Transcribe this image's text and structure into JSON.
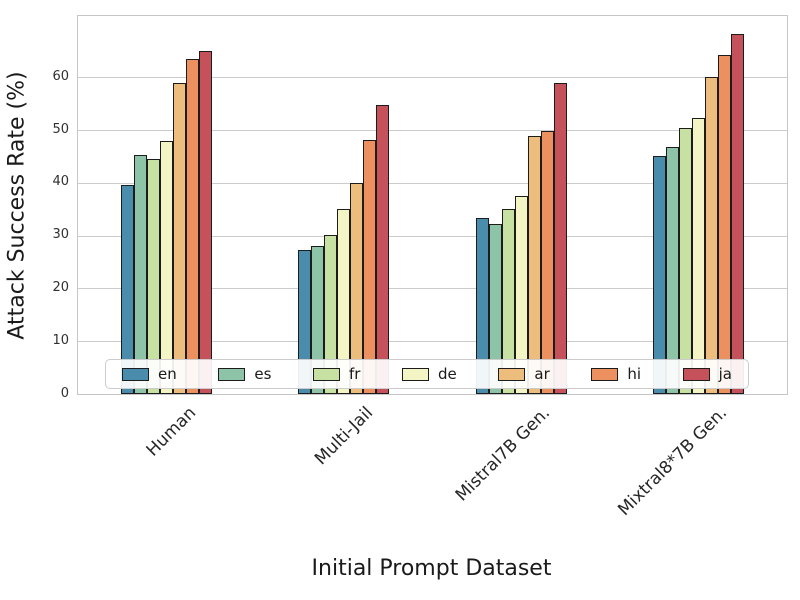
{
  "chart_data": {
    "type": "bar",
    "title": "",
    "xlabel": "Initial Prompt Dataset",
    "ylabel": "Attack Success Rate (%)",
    "categories": [
      "Human",
      "Multi-Jail",
      "Mistral7B Gen.",
      "Mixtral8*7B Gen."
    ],
    "series": [
      {
        "name": "en",
        "color": "#4a8cab",
        "values": [
          39.6,
          27.3,
          33.3,
          45.1
        ]
      },
      {
        "name": "es",
        "color": "#8dc3a6",
        "values": [
          45.2,
          28.1,
          32.2,
          46.8
        ]
      },
      {
        "name": "fr",
        "color": "#c7e1a3",
        "values": [
          44.6,
          30.1,
          35.1,
          50.3
        ]
      },
      {
        "name": "de",
        "color": "#f3f6c4",
        "values": [
          48.0,
          35.0,
          37.6,
          52.2
        ]
      },
      {
        "name": "ar",
        "color": "#edbd7d",
        "values": [
          59.0,
          39.9,
          48.8,
          60.1
        ]
      },
      {
        "name": "hi",
        "color": "#ec9060",
        "values": [
          63.5,
          48.1,
          49.8,
          64.3
        ]
      },
      {
        "name": "ja",
        "color": "#c5515a",
        "values": [
          65.0,
          54.8,
          59.0,
          68.2
        ]
      }
    ],
    "yticks": [
      0,
      10,
      20,
      30,
      40,
      50,
      60
    ],
    "ylim": [
      0,
      71.6
    ],
    "grid": "horizontal",
    "legend_position": "lower-center-inside",
    "legend_entries": [
      "en",
      "es",
      "fr",
      "de",
      "ar",
      "hi",
      "ja"
    ],
    "bar_edge_color": "#1c1c1c",
    "grid_color": "#cccccc",
    "spine_color": "#c6c6c6",
    "tick_label_color": "#262626"
  }
}
